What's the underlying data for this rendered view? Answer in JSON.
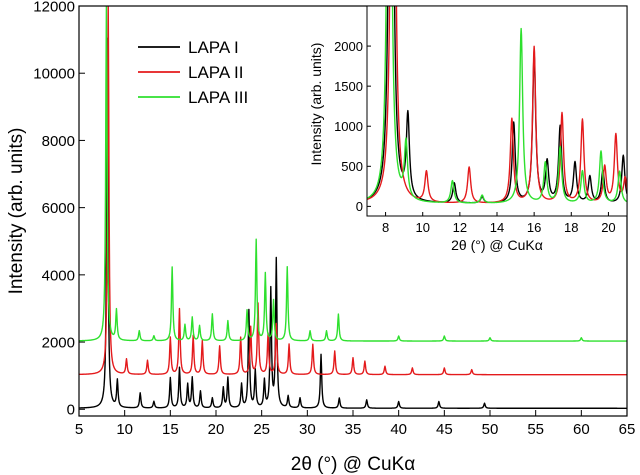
{
  "chart_data": [
    {
      "type": "line",
      "xlabel": "2θ (°) @ CuKα",
      "ylabel": "Intensity (arb. units)",
      "xlim": [
        5,
        65
      ],
      "ylim": [
        -200,
        12000
      ],
      "xticks": [
        5,
        10,
        15,
        20,
        25,
        30,
        35,
        40,
        45,
        50,
        55,
        60,
        65
      ],
      "yticks": [
        0,
        2000,
        4000,
        6000,
        8000,
        10000,
        12000
      ],
      "legend_position": "top-center",
      "series": [
        {
          "name": "LAPA I",
          "color": "#000000",
          "baseline": 30,
          "peaks": [
            [
              8.1,
              11000
            ],
            [
              9.2,
              800
            ],
            [
              11.7,
              450
            ],
            [
              13.2,
              200
            ],
            [
              15.0,
              900
            ],
            [
              16.0,
              1200
            ],
            [
              16.9,
              700
            ],
            [
              17.4,
              900
            ],
            [
              18.3,
              500
            ],
            [
              19.6,
              300
            ],
            [
              20.8,
              600
            ],
            [
              21.3,
              900
            ],
            [
              22.8,
              700
            ],
            [
              23.6,
              2900
            ],
            [
              24.3,
              1100
            ],
            [
              25.3,
              800
            ],
            [
              26.0,
              3500
            ],
            [
              26.6,
              4400
            ],
            [
              27.9,
              350
            ],
            [
              29.2,
              300
            ],
            [
              31.5,
              1600
            ],
            [
              33.5,
              300
            ],
            [
              36.5,
              250
            ],
            [
              40.0,
              200
            ],
            [
              44.4,
              200
            ],
            [
              49.4,
              150
            ]
          ]
        },
        {
          "name": "LAPA II",
          "color": "#e41a1c",
          "baseline": 1030,
          "peaks": [
            [
              8.2,
              11000
            ],
            [
              10.2,
              450
            ],
            [
              12.5,
              420
            ],
            [
              15.0,
              1100
            ],
            [
              16.0,
              1950
            ],
            [
              17.5,
              1150
            ],
            [
              18.5,
              1000
            ],
            [
              20.4,
              850
            ],
            [
              22.7,
              1100
            ],
            [
              23.8,
              1400
            ],
            [
              24.6,
              2100
            ],
            [
              25.7,
              1200
            ],
            [
              26.6,
              1500
            ],
            [
              28.0,
              900
            ],
            [
              30.6,
              900
            ],
            [
              33.0,
              700
            ],
            [
              35.0,
              500
            ],
            [
              36.3,
              400
            ],
            [
              38.5,
              250
            ],
            [
              41.5,
              200
            ],
            [
              45.0,
              200
            ],
            [
              48.0,
              150
            ]
          ]
        },
        {
          "name": "LAPA III",
          "color": "#2ee02e",
          "baseline": 2030,
          "peaks": [
            [
              8.0,
              10000
            ],
            [
              9.1,
              900
            ],
            [
              11.6,
              300
            ],
            [
              13.2,
              150
            ],
            [
              15.2,
              2200
            ],
            [
              16.6,
              480
            ],
            [
              17.4,
              700
            ],
            [
              18.2,
              450
            ],
            [
              19.6,
              800
            ],
            [
              21.3,
              600
            ],
            [
              23.4,
              900
            ],
            [
              24.4,
              3000
            ],
            [
              25.4,
              2000
            ],
            [
              26.3,
              1200
            ],
            [
              27.8,
              2200
            ],
            [
              30.3,
              300
            ],
            [
              32.1,
              300
            ],
            [
              33.4,
              800
            ],
            [
              40.0,
              150
            ],
            [
              45.0,
              150
            ],
            [
              50.0,
              100
            ],
            [
              60.0,
              100
            ]
          ]
        }
      ]
    },
    {
      "type": "line",
      "role": "inset",
      "xlabel": "2θ (°) @ CuKα",
      "ylabel": "Intensity (arb. units)",
      "xlim": [
        7,
        21
      ],
      "ylim": [
        -120,
        2500
      ],
      "xticks": [
        8,
        10,
        12,
        14,
        16,
        18,
        20
      ],
      "yticks": [
        0,
        500,
        1000,
        1500,
        2000
      ],
      "series": [
        {
          "name": "LAPA I",
          "color": "#000000",
          "baseline": 30,
          "peaks": [
            [
              8.3,
              11000
            ],
            [
              9.2,
              1030
            ],
            [
              11.7,
              250
            ],
            [
              13.2,
              80
            ],
            [
              14.9,
              1000
            ],
            [
              16.0,
              1850
            ],
            [
              16.7,
              500
            ],
            [
              17.4,
              950
            ],
            [
              18.2,
              500
            ],
            [
              19.0,
              330
            ],
            [
              19.7,
              400
            ],
            [
              20.8,
              600
            ]
          ]
        },
        {
          "name": "LAPA II",
          "color": "#e41a1c",
          "baseline": 30,
          "peaks": [
            [
              8.4,
              11000
            ],
            [
              10.2,
              380
            ],
            [
              12.5,
              450
            ],
            [
              14.8,
              1050
            ],
            [
              16.0,
              1950
            ],
            [
              17.5,
              1120
            ],
            [
              18.6,
              1040
            ],
            [
              19.8,
              450
            ],
            [
              20.4,
              850
            ],
            [
              20.9,
              300
            ]
          ]
        },
        {
          "name": "LAPA III",
          "color": "#2ee02e",
          "baseline": 30,
          "peaks": [
            [
              8.2,
              10000
            ],
            [
              9.1,
              700
            ],
            [
              11.6,
              280
            ],
            [
              13.2,
              100
            ],
            [
              15.3,
              2180
            ],
            [
              16.6,
              500
            ],
            [
              17.4,
              700
            ],
            [
              18.6,
              400
            ],
            [
              19.6,
              650
            ],
            [
              20.6,
              400
            ]
          ]
        }
      ]
    }
  ]
}
